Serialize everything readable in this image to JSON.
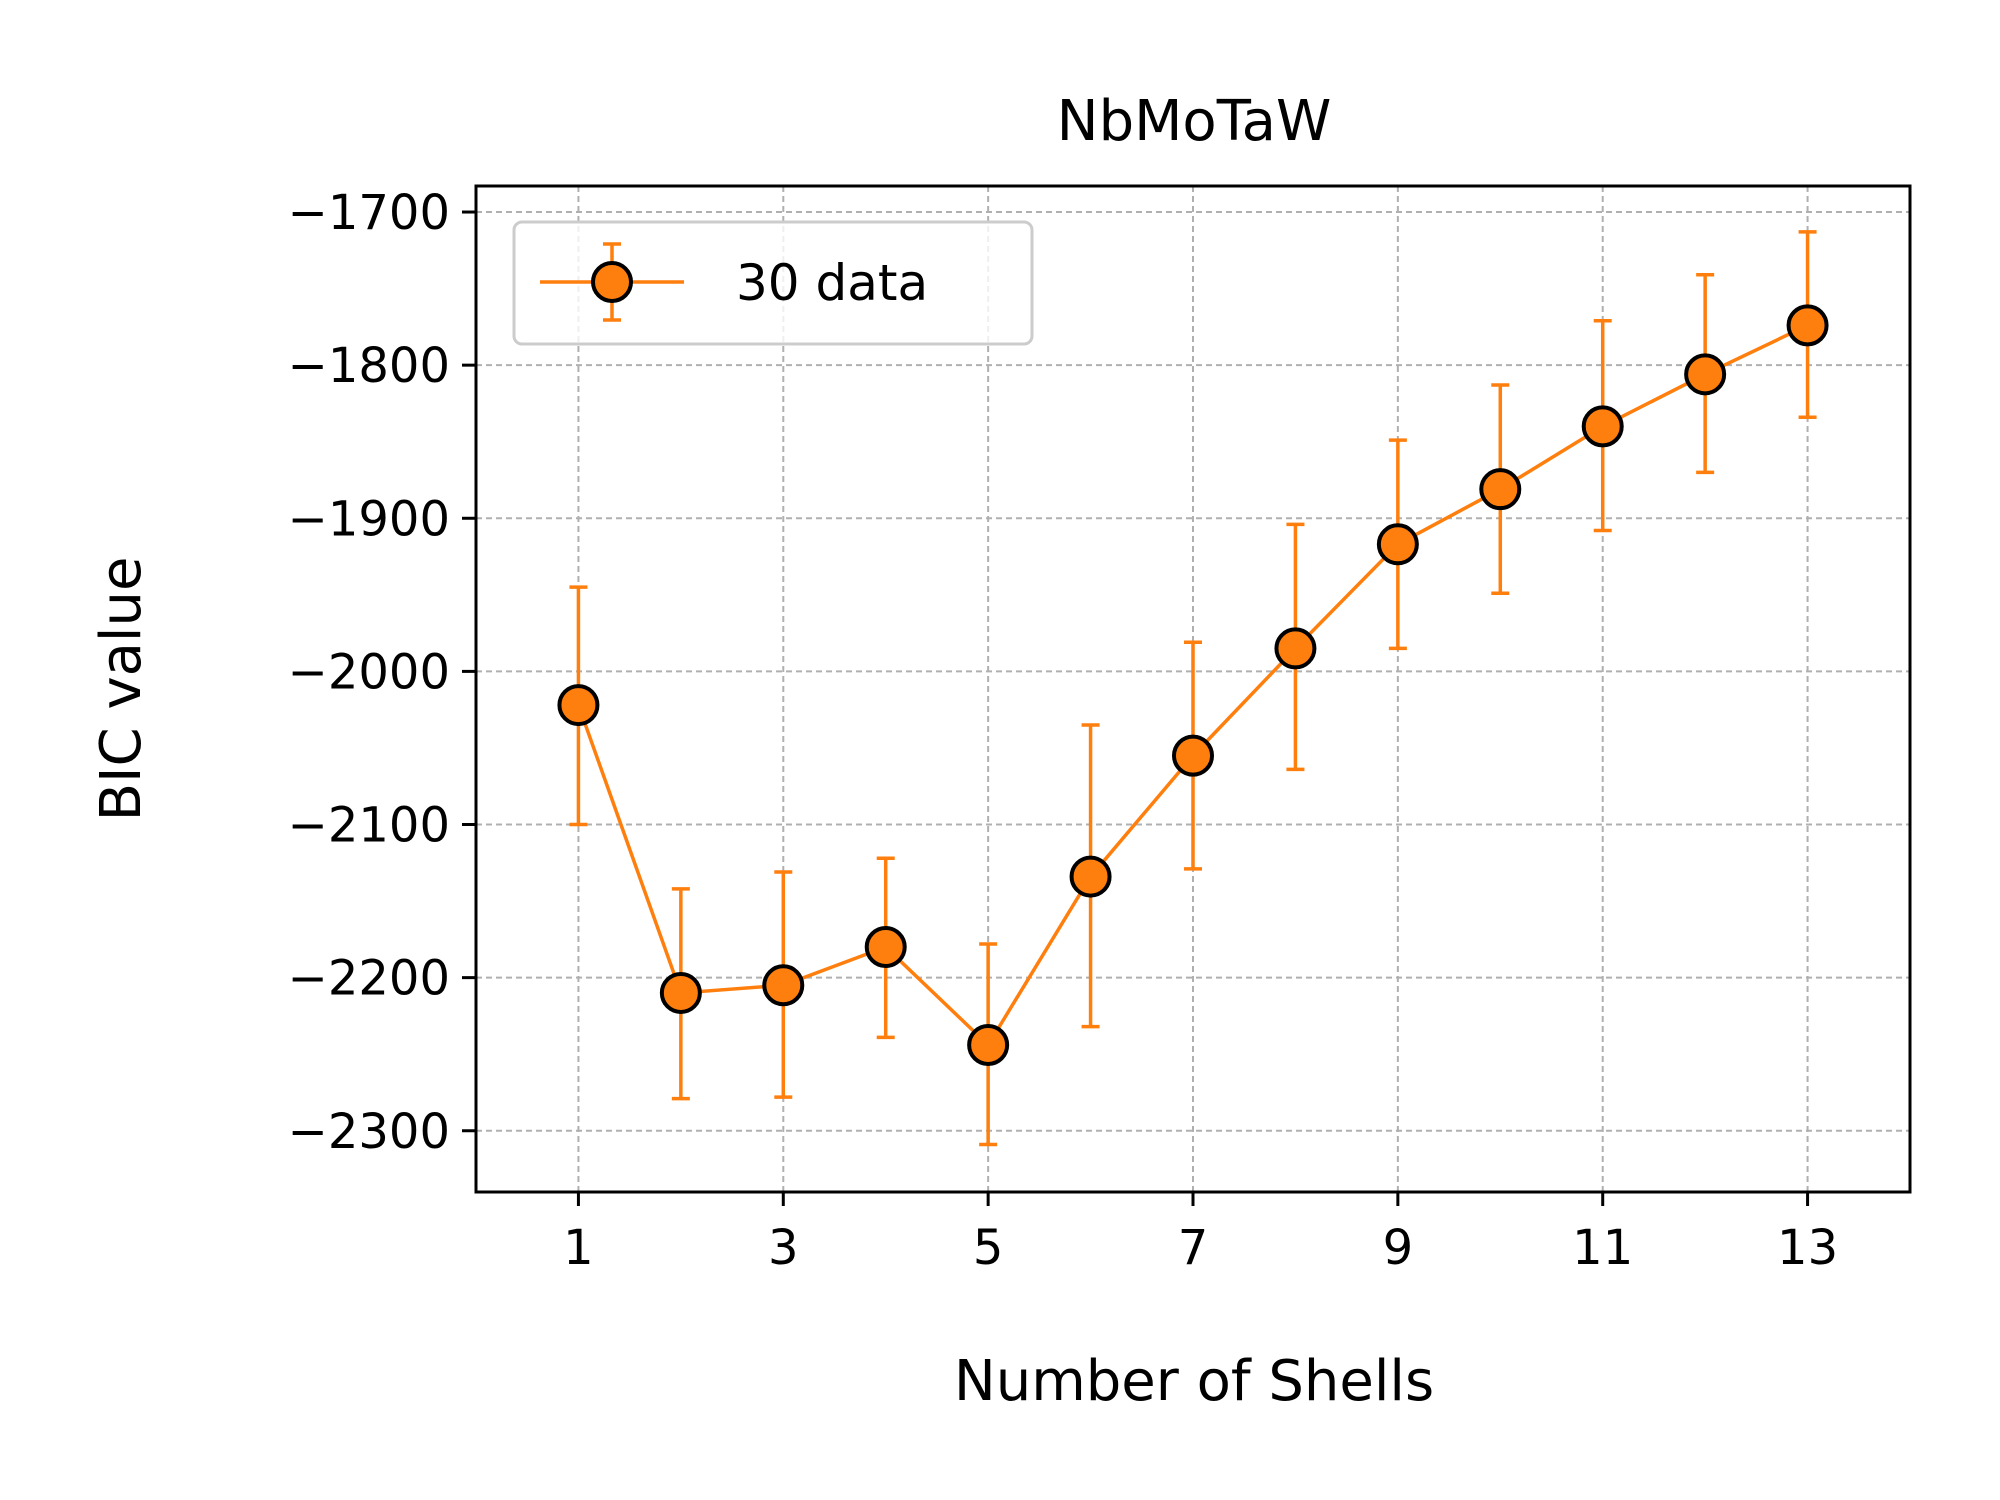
{
  "chart_data": {
    "type": "line",
    "title": "NbMoTaW",
    "xlabel": "Number of Shells",
    "ylabel": "BIC value",
    "x": [
      1,
      2,
      3,
      4,
      5,
      6,
      7,
      8,
      9,
      10,
      11,
      12,
      13
    ],
    "xlim": [
      0,
      14
    ],
    "ylim": [
      -2340,
      -1683
    ],
    "xticks": [
      1,
      3,
      5,
      7,
      9,
      11,
      13
    ],
    "xtick_labels": [
      "1",
      "3",
      "5",
      "7",
      "9",
      "11",
      "13"
    ],
    "yticks": [
      -1700,
      -1800,
      -1900,
      -2000,
      -2100,
      -2200,
      -2300
    ],
    "ytick_labels": [
      "−1700",
      "−1800",
      "−1900",
      "−2000",
      "−2100",
      "−2200",
      "−2300"
    ],
    "grid": true,
    "legend_position": "top-left",
    "series": [
      {
        "name": "30 data",
        "color": "#ff7f0e",
        "marker": "circle",
        "marker_edge_color": "#000000",
        "values": [
          -2022,
          -2210,
          -2205,
          -2180,
          -2244,
          -2134,
          -2055,
          -1985,
          -1917,
          -1881,
          -1840,
          -1806,
          -1774
        ],
        "error_low": [
          -2100,
          -2279,
          -2278,
          -2239,
          -2309,
          -2232,
          -2129,
          -2064,
          -1985,
          -1949,
          -1908,
          -1870,
          -1834
        ],
        "error_high": [
          -1945,
          -2142,
          -2131,
          -2122,
          -2178,
          -2035,
          -1981,
          -1904,
          -1849,
          -1813,
          -1771,
          -1741,
          -1713
        ]
      }
    ]
  }
}
